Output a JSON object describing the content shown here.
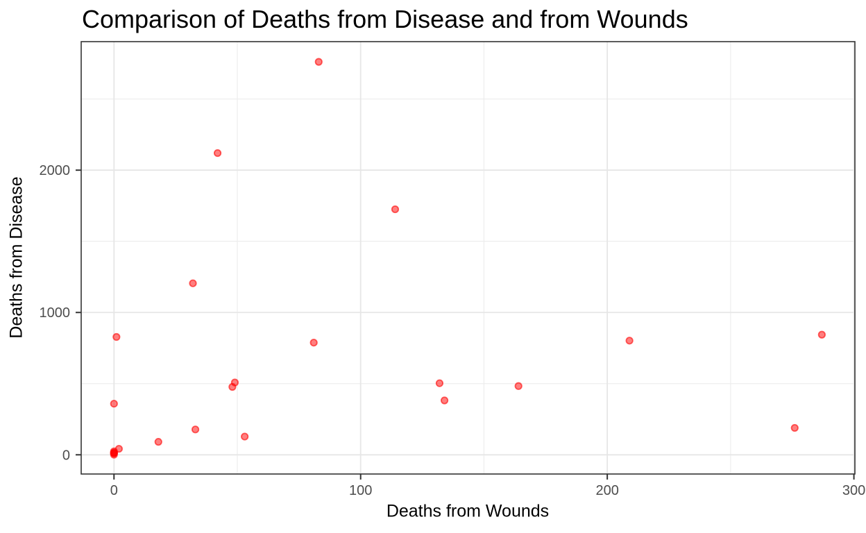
{
  "chart_data": {
    "type": "scatter",
    "title": "Comparison of Deaths from Disease and from Wounds",
    "xlabel": "Deaths from Wounds",
    "ylabel": "Deaths from Disease",
    "x_ticks": [
      0,
      100,
      200,
      300
    ],
    "x_tick_labels": [
      "0",
      "100",
      "200",
      "300"
    ],
    "y_ticks": [
      0,
      1000,
      2000
    ],
    "y_tick_labels": [
      "0",
      "1000",
      "2000"
    ],
    "x_minor_gridlines": [
      50,
      150,
      250
    ],
    "y_minor_gridlines": [
      500,
      1500,
      2500
    ],
    "xlim": [
      -13.3,
      300.4
    ],
    "ylim": [
      -135,
      2903
    ],
    "grid": true,
    "legend": false,
    "points": [
      {
        "x": 0,
        "y": 1
      },
      {
        "x": 0,
        "y": 12
      },
      {
        "x": 0,
        "y": 11
      },
      {
        "x": 0,
        "y": 359
      },
      {
        "x": 1,
        "y": 828
      },
      {
        "x": 81,
        "y": 788
      },
      {
        "x": 132,
        "y": 503
      },
      {
        "x": 287,
        "y": 844
      },
      {
        "x": 114,
        "y": 1725
      },
      {
        "x": 83,
        "y": 2761
      },
      {
        "x": 42,
        "y": 2120
      },
      {
        "x": 32,
        "y": 1205
      },
      {
        "x": 48,
        "y": 477
      },
      {
        "x": 49,
        "y": 508
      },
      {
        "x": 209,
        "y": 802
      },
      {
        "x": 134,
        "y": 382
      },
      {
        "x": 164,
        "y": 483
      },
      {
        "x": 276,
        "y": 189
      },
      {
        "x": 53,
        "y": 128
      },
      {
        "x": 33,
        "y": 178
      },
      {
        "x": 18,
        "y": 91
      },
      {
        "x": 2,
        "y": 42
      },
      {
        "x": 0,
        "y": 24
      },
      {
        "x": 0,
        "y": 15
      }
    ],
    "colors": {
      "point": "#FF0000",
      "point_alpha": 0.5,
      "grid_major": "#E6E6E6",
      "grid_minor": "#ECECEC",
      "panel_border": "#333333",
      "tick_mark": "#333333",
      "tick_label": "#4D4D4D",
      "text": "#000000",
      "background": "#FFFFFF"
    }
  }
}
